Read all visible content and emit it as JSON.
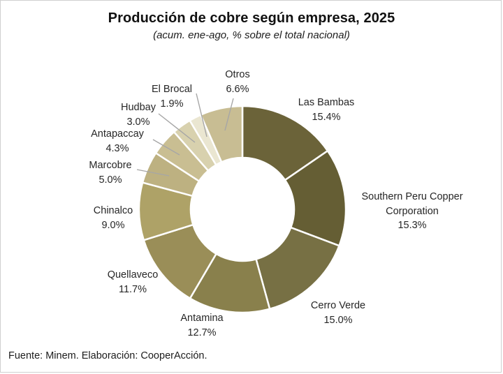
{
  "title": "Producción de cobre según empresa, 2025",
  "subtitle": "(acum. ene-ago, % sobre el total nacional)",
  "footer": "Fuente: Minem. Elaboración: CooperAcción.",
  "chart_data": {
    "type": "pie",
    "subtype": "donut",
    "title": "Producción de cobre según empresa, 2025",
    "subtitle": "(acum. ene-ago, % sobre el total nacional)",
    "unit": "% del total nacional",
    "start_angle_deg": 0,
    "direction": "clockwise",
    "legend": "none",
    "separator_color": "#ffffff",
    "leader_line_color": "#a6a6a6",
    "slices": [
      {
        "name": "Las Bambas",
        "value": 15.4,
        "pct_text": "15.4%",
        "color": "#6b6339"
      },
      {
        "name": "Southern Peru Copper Corporation",
        "value": 15.3,
        "pct_text": "15.3%",
        "color": "#655e34"
      },
      {
        "name": "Cerro Verde",
        "value": 15.0,
        "pct_text": "15.0%",
        "color": "#777044"
      },
      {
        "name": "Antamina",
        "value": 12.7,
        "pct_text": "12.7%",
        "color": "#89804c"
      },
      {
        "name": "Quellaveco",
        "value": 11.7,
        "pct_text": "11.7%",
        "color": "#9a8e58"
      },
      {
        "name": "Chinalco",
        "value": 9.0,
        "pct_text": "9.0%",
        "color": "#aea267"
      },
      {
        "name": "Marcobre",
        "value": 5.0,
        "pct_text": "5.0%",
        "color": "#bdb181"
      },
      {
        "name": "Antapaccay",
        "value": 4.3,
        "pct_text": "4.3%",
        "color": "#c9be92"
      },
      {
        "name": "Hudbay",
        "value": 3.0,
        "pct_text": "3.0%",
        "color": "#d8d1ae"
      },
      {
        "name": "El Brocal",
        "value": 1.9,
        "pct_text": "1.9%",
        "color": "#eae6d1"
      },
      {
        "name": "Otros",
        "value": 6.6,
        "pct_text": "6.6%",
        "color": "#c8bd93"
      }
    ]
  }
}
